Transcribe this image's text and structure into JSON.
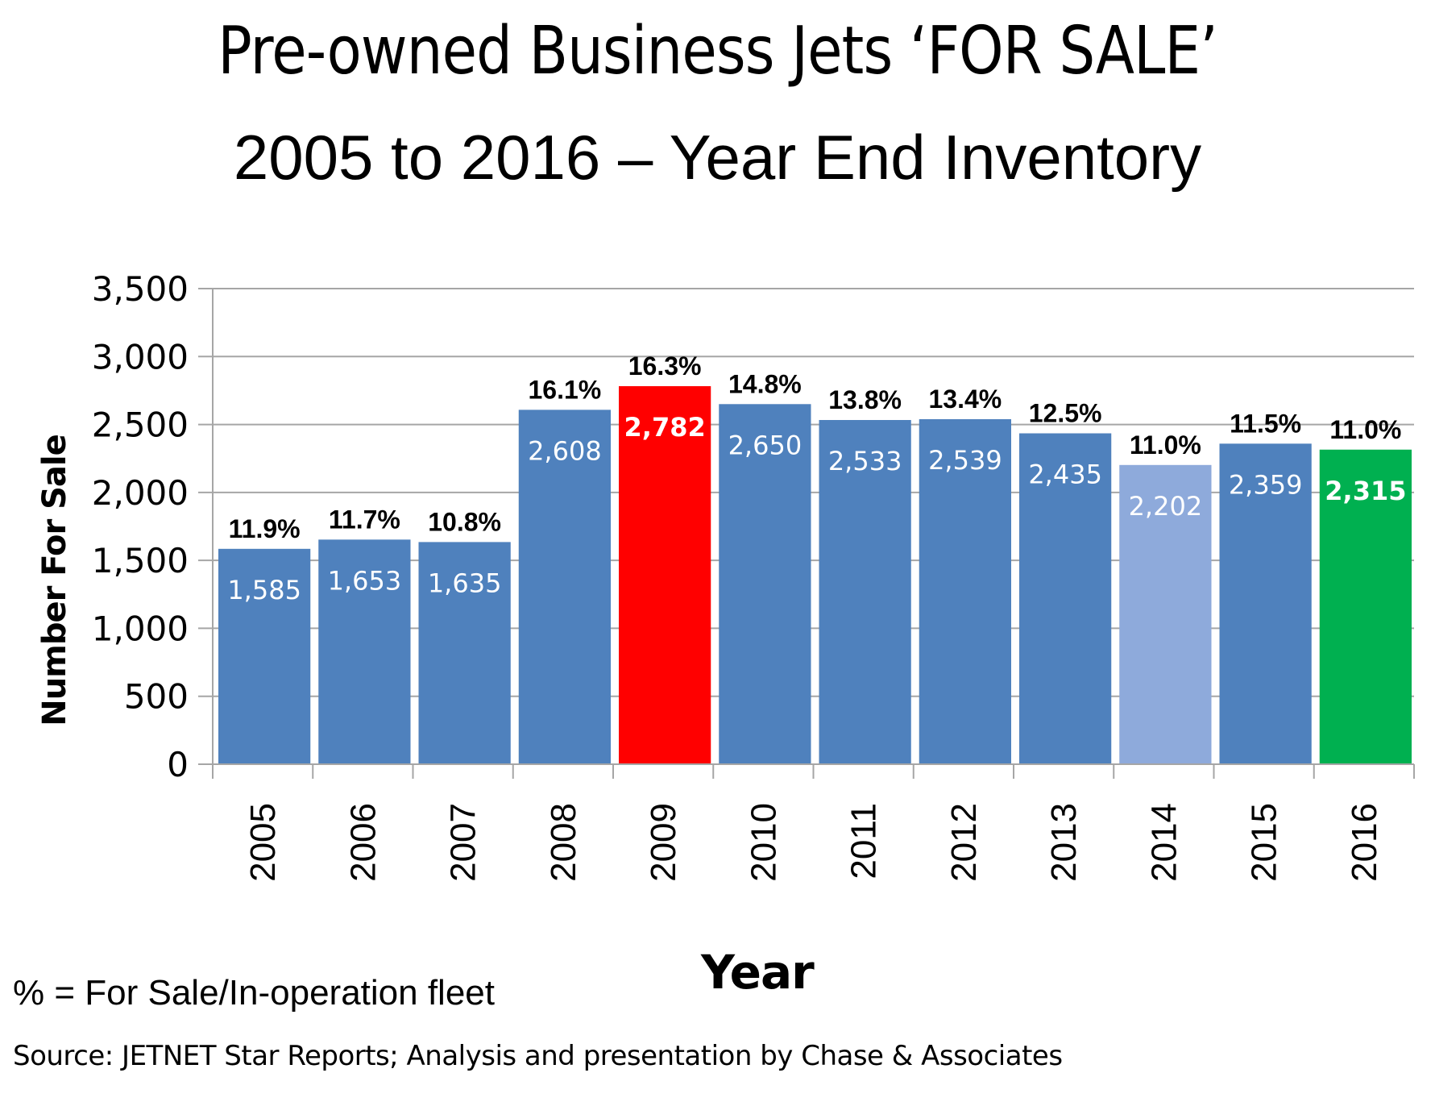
{
  "title": "Pre-owned Business Jets ‘FOR SALE’",
  "subtitle": "2005 to 2016 – Year End Inventory",
  "footnote": "% = For Sale/In-operation fleet",
  "source": "Source: JETNET Star Reports; Analysis and presentation by Chase & Associates",
  "chart_data": {
    "type": "bar",
    "title": "Pre-owned Business Jets ‘FOR SALE’ — 2005 to 2016 – Year End Inventory",
    "xlabel": "Year",
    "ylabel": "Number  For Sale",
    "ylim": [
      0,
      3500
    ],
    "ytick_step": 500,
    "ytick_labels": [
      "0",
      "500",
      "1,000",
      "1,500",
      "2,000",
      "2,500",
      "3,000",
      "3,500"
    ],
    "grid": true,
    "legend": "none",
    "categories": [
      "2005",
      "2006",
      "2007",
      "2008",
      "2009",
      "2010",
      "2011",
      "2012",
      "2013",
      "2014",
      "2015",
      "2016"
    ],
    "values": [
      1585,
      1653,
      1635,
      2608,
      2782,
      2650,
      2533,
      2539,
      2435,
      2202,
      2359,
      2315
    ],
    "value_labels": [
      "1,585",
      "1,653",
      "1,635",
      "2,608",
      "2,782",
      "2,650",
      "2,533",
      "2,539",
      "2,435",
      "2,202",
      "2,359",
      "2,315"
    ],
    "percent_labels": [
      "11.9%",
      "11.7%",
      "10.8%",
      "16.1%",
      "16.3%",
      "14.8%",
      "13.8%",
      "13.4%",
      "12.5%",
      "11.0%",
      "11.5%",
      "11.0%"
    ],
    "bar_colors": [
      "#4f81bd",
      "#4f81bd",
      "#4f81bd",
      "#4f81bd",
      "#ff0000",
      "#4f81bd",
      "#4f81bd",
      "#4f81bd",
      "#4f81bd",
      "#8eaadb",
      "#4f81bd",
      "#00b050"
    ],
    "bold_value_labels": [
      false,
      false,
      false,
      false,
      true,
      false,
      false,
      false,
      false,
      false,
      false,
      true
    ],
    "gridline_color": "#a6a6a6"
  }
}
